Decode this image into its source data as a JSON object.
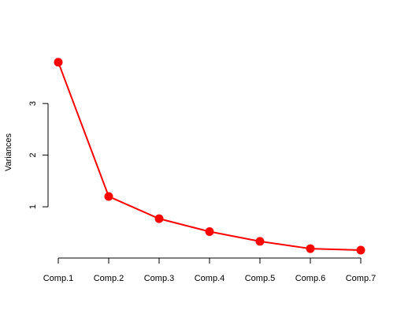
{
  "chart_data": {
    "type": "line",
    "title": "",
    "xlabel": "",
    "ylabel": "Variances",
    "categories": [
      "Comp.1",
      "Comp.2",
      "Comp.3",
      "Comp.4",
      "Comp.5",
      "Comp.6",
      "Comp.7"
    ],
    "series": [
      {
        "values": [
          3.8,
          1.2,
          0.77,
          0.52,
          0.33,
          0.19,
          0.16
        ],
        "color": "#ff0000"
      }
    ],
    "yticks": [
      1,
      2,
      3
    ],
    "ylim": [
      0.13,
      3.95
    ],
    "grid": false,
    "legend": "none"
  }
}
